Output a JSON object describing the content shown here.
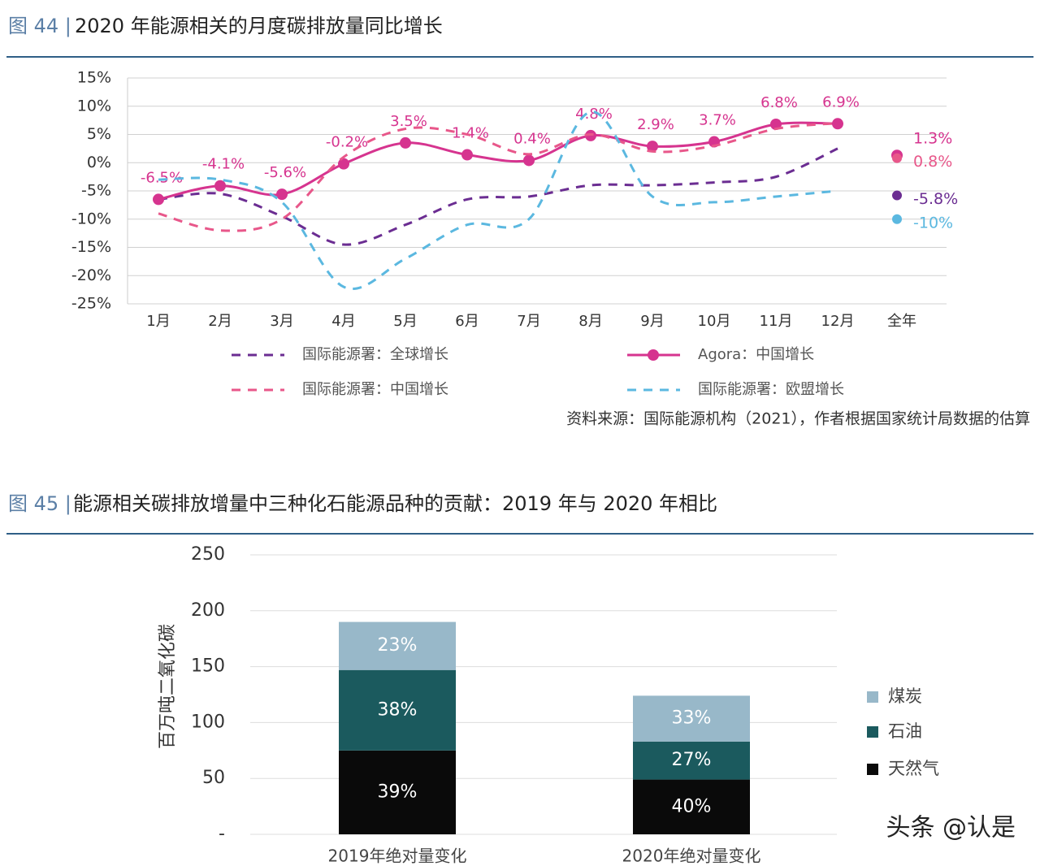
{
  "watermark": "头条 @认是",
  "chart_data": [
    {
      "type": "line",
      "figure_label": "图 44 |",
      "title": "2020 年能源相关的月度碳排放量同比增长",
      "categories": [
        "1月",
        "2月",
        "3月",
        "4月",
        "5月",
        "6月",
        "7月",
        "8月",
        "9月",
        "10月",
        "11月",
        "12月"
      ],
      "annual_category": "全年",
      "ylim": [
        -25,
        15
      ],
      "yticks": [
        {
          "value": 15,
          "label": "15%"
        },
        {
          "value": 10,
          "label": "10%"
        },
        {
          "value": 5,
          "label": "5%"
        },
        {
          "value": 0,
          "label": "0%"
        },
        {
          "value": -5,
          "label": "-5%"
        },
        {
          "value": -10,
          "label": "-10%"
        },
        {
          "value": -15,
          "label": "-15%"
        },
        {
          "value": -20,
          "label": "-20%"
        },
        {
          "value": -25,
          "label": "-25%"
        }
      ],
      "grid": true,
      "series": [
        {
          "name": "国际能源署：全球增长",
          "color": "#6b2d92",
          "dash": true,
          "values": [
            -6.5,
            -5.5,
            -9.5,
            -14.5,
            -11,
            -6.5,
            -6,
            -4,
            -4,
            -3.5,
            -2.5,
            2.5
          ],
          "annual": -5.8,
          "annual_label": "-5.8%"
        },
        {
          "name": "Agora：中国增长",
          "color": "#d6348f",
          "marker": true,
          "values": [
            -6.5,
            -4.1,
            -5.6,
            -0.2,
            3.5,
            1.4,
            0.4,
            4.8,
            2.9,
            3.7,
            6.8,
            6.9
          ],
          "value_labels": [
            "-6.5%",
            "-4.1%",
            "-5.6%",
            "-0.2%",
            "3.5%",
            "1.4%",
            "0.4%",
            "4.8%",
            "2.9%",
            "3.7%",
            "6.8%",
            "6.9%"
          ],
          "annual": 1.3,
          "annual_label": "1.3%"
        },
        {
          "name": "国际能源署：中国增长",
          "color": "#e8578a",
          "dash": true,
          "values": [
            -9,
            -12,
            -10,
            1,
            6,
            5,
            1.5,
            5,
            2,
            3,
            6,
            7
          ],
          "annual": 0.8,
          "annual_label": "0.8%"
        },
        {
          "name": "国际能源署：欧盟增长",
          "color": "#5bb8e0",
          "dash": true,
          "values": [
            -3,
            -3,
            -7,
            -22,
            -17,
            -11,
            -10,
            9,
            -6,
            -7,
            -6,
            -5
          ],
          "annual": -10,
          "annual_label": "-10%"
        }
      ],
      "source": "资料来源：国际能源机构（2021），作者根据国家统计局数据的估算"
    },
    {
      "type": "bar",
      "stacked": true,
      "figure_label": "图 45 |",
      "title": "能源相关碳排放增量中三种化石能源品种的贡献：2019 年与 2020 年相比",
      "ylabel": "百万吨二氧化碳",
      "categories": [
        "2019年绝对量变化",
        "2020年绝对量变化"
      ],
      "ylim": [
        0,
        250
      ],
      "yticks": [
        {
          "value": 0,
          "label": "-"
        },
        50,
        100,
        150,
        200,
        250
      ],
      "grid": true,
      "series": [
        {
          "name": "天然气",
          "color": "#0a0a0a",
          "values": [
            75,
            49
          ],
          "share_labels": [
            "39%",
            "40%"
          ]
        },
        {
          "name": "石油",
          "color": "#1b5a5e",
          "values": [
            72,
            34
          ],
          "share_labels": [
            "38%",
            "27%"
          ]
        },
        {
          "name": "煤炭",
          "color": "#98b8c9",
          "values": [
            43,
            41
          ],
          "share_labels": [
            "23%",
            "33%"
          ]
        }
      ]
    }
  ]
}
